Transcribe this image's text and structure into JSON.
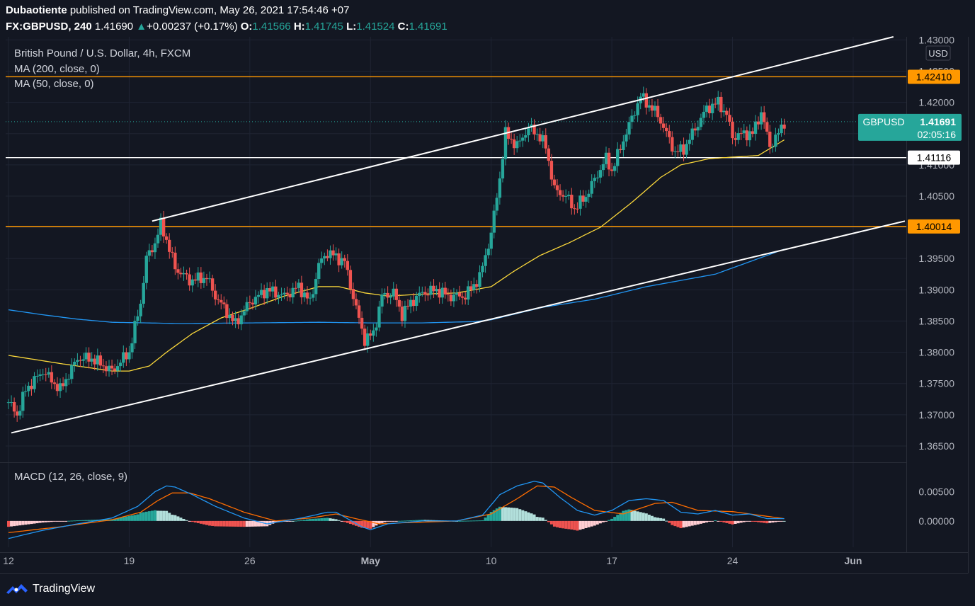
{
  "header": {
    "author": "Dubaotiente",
    "published_text": "published on TradingView.com, May 26, 2021 17:54:46 +07",
    "symbol": "FX:GBPUSD, 240",
    "last": "1.41690",
    "change_arrow": "▲",
    "change": "+0.00237 (+0.17%)",
    "open_label": "O:",
    "open": "1.41566",
    "high_label": "H:",
    "high": "1.41745",
    "low_label": "L:",
    "low": "1.41524",
    "close_label": "C:",
    "close": "1.41691"
  },
  "legend": {
    "title": "British Pound / U.S. Dollar, 4h, FXCM",
    "ma200": "MA (200, close, 0)",
    "ma50": "MA (50, close, 0)",
    "macd": "MACD (12, 26, close, 9)"
  },
  "footer": {
    "brand": "TradingView",
    "logo_icon": "tradingview-logo-icon"
  },
  "colors": {
    "background": "#131722",
    "up": "#26a69a",
    "down": "#ef5350",
    "orange": "#ff9800",
    "ma200": "#2196f3",
    "ma50": "#fbd83b",
    "macd_line": "#2196f3",
    "signal_line": "#ff6d00",
    "hist_up": "#26a69a",
    "hist_down": "#ef5350"
  },
  "chart_data": {
    "type": "candlestick",
    "currency": "USD",
    "price_axis": {
      "ylim": [
        1.3625,
        1.4305
      ],
      "ticks": [
        "1.43000",
        "1.42500",
        "1.42000",
        "1.41500",
        "1.41000",
        "1.40500",
        "1.40000",
        "1.39500",
        "1.39000",
        "1.38500",
        "1.38000",
        "1.37500",
        "1.37000",
        "1.36500"
      ]
    },
    "time_axis": {
      "xlim": [
        "2021-04-12",
        "2021-06-03"
      ],
      "ticks": [
        {
          "date": "2021-04-12",
          "label": "12"
        },
        {
          "date": "2021-04-19",
          "label": "19"
        },
        {
          "date": "2021-04-26",
          "label": "26"
        },
        {
          "date": "2021-05-03",
          "label": "May"
        },
        {
          "date": "2021-05-10",
          "label": "10"
        },
        {
          "date": "2021-05-17",
          "label": "17"
        },
        {
          "date": "2021-05-24",
          "label": "24"
        },
        {
          "date": "2021-05-31",
          "label": "Jun"
        }
      ]
    },
    "horizontal_lines": [
      {
        "value": 1.4241,
        "label": "1.42410",
        "color": "#ff9800"
      },
      {
        "value": 1.40014,
        "label": "1.40014",
        "color": "#ff9800"
      },
      {
        "value": 1.41116,
        "label": "1.41116",
        "color": "#ffffff"
      }
    ],
    "price_label": {
      "symbol": "GBPUSD",
      "value": "1.41691",
      "countdown": "02:05:16",
      "price": 1.41691
    },
    "trendlines": [
      {
        "from": [
          "2021-04-20T08:00",
          1.401
        ],
        "to": [
          "2021-06-02T08:00",
          1.4305
        ]
      },
      {
        "from": [
          "2021-04-12T04:00",
          1.3671
        ],
        "to": [
          "2021-06-03",
          1.401
        ]
      }
    ],
    "ohlc_anchors": [
      [
        "2021-04-12T00:00",
        1.372
      ],
      [
        "2021-04-12T12:00",
        1.37
      ],
      [
        "2021-04-13T00:00",
        1.374
      ],
      [
        "2021-04-14T00:00",
        1.377
      ],
      [
        "2021-04-15T00:00",
        1.374
      ],
      [
        "2021-04-16T00:00",
        1.379
      ],
      [
        "2021-04-16T20:00",
        1.379
      ],
      [
        "2021-04-18T00:00",
        1.377
      ],
      [
        "2021-04-19T00:00",
        1.38
      ],
      [
        "2021-04-19T16:00",
        1.388
      ],
      [
        "2021-04-20T00:00",
        1.395
      ],
      [
        "2021-04-20T12:00",
        1.3975
      ],
      [
        "2021-04-20T20:00",
        1.4005
      ],
      [
        "2021-04-21T04:00",
        1.398
      ],
      [
        "2021-04-21T16:00",
        1.3935
      ],
      [
        "2021-04-22T12:00",
        1.3915
      ],
      [
        "2021-04-23T12:00",
        1.392
      ],
      [
        "2021-04-24T00:00",
        1.389
      ],
      [
        "2021-04-25T04:00",
        1.3845
      ],
      [
        "2021-04-25T12:00",
        1.386
      ],
      [
        "2021-04-26T00:00",
        1.388
      ],
      [
        "2021-04-27T00:00",
        1.39
      ],
      [
        "2021-04-28T00:00",
        1.389
      ],
      [
        "2021-04-28T20:00",
        1.3905
      ],
      [
        "2021-04-29T12:00",
        1.388
      ],
      [
        "2021-04-30T00:00",
        1.394
      ],
      [
        "2021-04-30T12:00",
        1.396
      ],
      [
        "2021-05-01T12:00",
        1.3945
      ],
      [
        "2021-05-02T04:00",
        1.387
      ],
      [
        "2021-05-02T16:00",
        1.382
      ],
      [
        "2021-05-03T04:00",
        1.383
      ],
      [
        "2021-05-03T16:00",
        1.389
      ],
      [
        "2021-05-04T08:00",
        1.3895
      ],
      [
        "2021-05-04T20:00",
        1.386
      ],
      [
        "2021-05-05T08:00",
        1.388
      ],
      [
        "2021-05-06T00:00",
        1.3895
      ],
      [
        "2021-05-06T20:00",
        1.39
      ],
      [
        "2021-05-07T12:00",
        1.389
      ],
      [
        "2021-05-08T12:00",
        1.389
      ],
      [
        "2021-05-09T08:00",
        1.392
      ],
      [
        "2021-05-10T00:00",
        1.399
      ],
      [
        "2021-05-10T12:00",
        1.408
      ],
      [
        "2021-05-10T20:00",
        1.415
      ],
      [
        "2021-05-11T12:00",
        1.413
      ],
      [
        "2021-05-12T04:00",
        1.416
      ],
      [
        "2021-05-12T16:00",
        1.415
      ],
      [
        "2021-05-13T04:00",
        1.413
      ],
      [
        "2021-05-13T16:00",
        1.406
      ],
      [
        "2021-05-14T08:00",
        1.405
      ],
      [
        "2021-05-14T20:00",
        1.403
      ],
      [
        "2021-05-15T12:00",
        1.405
      ],
      [
        "2021-05-16T04:00",
        1.4085
      ],
      [
        "2021-05-16T16:00",
        1.411
      ],
      [
        "2021-05-17T00:00",
        1.409
      ],
      [
        "2021-05-17T16:00",
        1.414
      ],
      [
        "2021-05-18T04:00",
        1.4175
      ],
      [
        "2021-05-18T16:00",
        1.421
      ],
      [
        "2021-05-19T04:00",
        1.4195
      ],
      [
        "2021-05-19T16:00",
        1.418
      ],
      [
        "2021-05-20T04:00",
        1.415
      ],
      [
        "2021-05-20T16:00",
        1.412
      ],
      [
        "2021-05-21T04:00",
        1.4125
      ],
      [
        "2021-05-21T16:00",
        1.415
      ],
      [
        "2021-05-22T12:00",
        1.419
      ],
      [
        "2021-05-23T04:00",
        1.42
      ],
      [
        "2021-05-23T16:00",
        1.418
      ],
      [
        "2021-05-24T00:00",
        1.4145
      ],
      [
        "2021-05-24T16:00",
        1.415
      ],
      [
        "2021-05-25T04:00",
        1.415
      ],
      [
        "2021-05-25T16:00",
        1.4185
      ],
      [
        "2021-05-26T04:00",
        1.413
      ],
      [
        "2021-05-26T16:00",
        1.415
      ],
      [
        "2021-05-27T00:00",
        1.4169
      ]
    ],
    "ma200_anchors": [
      [
        "2021-04-12T00:00",
        1.3868
      ],
      [
        "2021-04-14T00:00",
        1.386
      ],
      [
        "2021-04-16T00:00",
        1.3853
      ],
      [
        "2021-04-18T00:00",
        1.3848
      ],
      [
        "2021-04-22T00:00",
        1.3846
      ],
      [
        "2021-04-26T00:00",
        1.3847
      ],
      [
        "2021-04-30T00:00",
        1.3848
      ],
      [
        "2021-05-03T00:00",
        1.3847
      ],
      [
        "2021-05-06T00:00",
        1.3847
      ],
      [
        "2021-05-09T00:00",
        1.3849
      ],
      [
        "2021-05-10T00:00",
        1.3852
      ],
      [
        "2021-05-11T12:00",
        1.3862
      ],
      [
        "2021-05-13T00:00",
        1.3872
      ],
      [
        "2021-05-16T00:00",
        1.3885
      ],
      [
        "2021-05-19T00:00",
        1.3905
      ],
      [
        "2021-05-23T00:00",
        1.3925
      ],
      [
        "2021-05-27T00:00",
        1.3965
      ]
    ],
    "ma50_anchors": [
      [
        "2021-04-12T00:00",
        1.3795
      ],
      [
        "2021-04-15T00:00",
        1.3782
      ],
      [
        "2021-04-18T00:00",
        1.377
      ],
      [
        "2021-04-19T00:00",
        1.377
      ],
      [
        "2021-04-20T04:00",
        1.3778
      ],
      [
        "2021-04-21T04:00",
        1.38
      ],
      [
        "2021-04-22T16:00",
        1.383
      ],
      [
        "2021-04-24T08:00",
        1.3855
      ],
      [
        "2021-04-26T00:00",
        1.387
      ],
      [
        "2021-04-28T00:00",
        1.389
      ],
      [
        "2021-04-30T00:00",
        1.3905
      ],
      [
        "2021-05-01T04:00",
        1.3905
      ],
      [
        "2021-05-02T16:00",
        1.3895
      ],
      [
        "2021-05-04T00:00",
        1.389
      ],
      [
        "2021-05-06T00:00",
        1.3893
      ],
      [
        "2021-05-08T00:00",
        1.3895
      ],
      [
        "2021-05-10T00:00",
        1.3905
      ],
      [
        "2021-05-11T08:00",
        1.393
      ],
      [
        "2021-05-12T20:00",
        1.3955
      ],
      [
        "2021-05-14T12:00",
        1.3975
      ],
      [
        "2021-05-16T08:00",
        1.4
      ],
      [
        "2021-05-18T04:00",
        1.404
      ],
      [
        "2021-05-19T20:00",
        1.408
      ],
      [
        "2021-05-21T00:00",
        1.41
      ],
      [
        "2021-05-22T16:00",
        1.411
      ],
      [
        "2021-05-24T08:00",
        1.4113
      ],
      [
        "2021-05-25T12:00",
        1.4115
      ],
      [
        "2021-05-27T00:00",
        1.414
      ]
    ],
    "macd": {
      "ylim": [
        -0.0045,
        0.0098
      ],
      "ticks": [
        "0.00500",
        "0.00000"
      ],
      "macd_anchors": [
        [
          "2021-04-12T00:00",
          -0.003
        ],
        [
          "2021-04-14T00:00",
          -0.0016
        ],
        [
          "2021-04-16T00:00",
          -0.0005
        ],
        [
          "2021-04-18T00:00",
          0.0005
        ],
        [
          "2021-04-19T12:00",
          0.0025
        ],
        [
          "2021-04-20T12:00",
          0.005
        ],
        [
          "2021-04-21T04:00",
          0.006
        ],
        [
          "2021-04-21T16:00",
          0.0058
        ],
        [
          "2021-04-22T16:00",
          0.0045
        ],
        [
          "2021-04-24T00:00",
          0.0025
        ],
        [
          "2021-04-25T16:00",
          0.0005
        ],
        [
          "2021-04-27T00:00",
          -0.0005
        ],
        [
          "2021-04-29T00:00",
          0.0005
        ],
        [
          "2021-04-30T12:00",
          0.0015
        ],
        [
          "2021-05-01T00:00",
          0.0015
        ],
        [
          "2021-05-02T12:00",
          -0.001
        ],
        [
          "2021-05-03T00:00",
          -0.0015
        ],
        [
          "2021-05-04T00:00",
          -0.0005
        ],
        [
          "2021-05-06T00:00",
          0.0
        ],
        [
          "2021-05-08T00:00",
          0.0
        ],
        [
          "2021-05-09T12:00",
          0.001
        ],
        [
          "2021-05-10T12:00",
          0.0045
        ],
        [
          "2021-05-11T12:00",
          0.006
        ],
        [
          "2021-05-12T12:00",
          0.0068
        ],
        [
          "2021-05-13T00:00",
          0.0065
        ],
        [
          "2021-05-14T00:00",
          0.004
        ],
        [
          "2021-05-15T00:00",
          0.0018
        ],
        [
          "2021-05-16T00:00",
          0.001
        ],
        [
          "2021-05-17T00:00",
          0.0018
        ],
        [
          "2021-05-18T00:00",
          0.0035
        ],
        [
          "2021-05-19T00:00",
          0.0038
        ],
        [
          "2021-05-20T00:00",
          0.0035
        ],
        [
          "2021-05-21T00:00",
          0.0015
        ],
        [
          "2021-05-22T00:00",
          0.0012
        ],
        [
          "2021-05-23T00:00",
          0.0018
        ],
        [
          "2021-05-24T00:00",
          0.001
        ],
        [
          "2021-05-25T00:00",
          0.0012
        ],
        [
          "2021-05-26T00:00",
          0.0004
        ],
        [
          "2021-05-27T00:00",
          0.0004
        ]
      ],
      "signal_anchors": [
        [
          "2021-04-12T00:00",
          -0.002
        ],
        [
          "2021-04-15T00:00",
          -0.001
        ],
        [
          "2021-04-18T00:00",
          0.0002
        ],
        [
          "2021-04-19T16:00",
          0.0015
        ],
        [
          "2021-04-20T16:00",
          0.0035
        ],
        [
          "2021-04-21T12:00",
          0.0048
        ],
        [
          "2021-04-22T12:00",
          0.0048
        ],
        [
          "2021-04-23T16:00",
          0.0038
        ],
        [
          "2021-04-25T16:00",
          0.0015
        ],
        [
          "2021-04-27T12:00",
          0.0
        ],
        [
          "2021-04-29T12:00",
          0.0005
        ],
        [
          "2021-05-01T00:00",
          0.0012
        ],
        [
          "2021-05-02T00:00",
          0.0005
        ],
        [
          "2021-05-03T12:00",
          -0.0005
        ],
        [
          "2021-05-05T00:00",
          -0.0003
        ],
        [
          "2021-05-08T00:00",
          0.0
        ],
        [
          "2021-05-10T00:00",
          0.0012
        ],
        [
          "2021-05-11T12:00",
          0.0038
        ],
        [
          "2021-05-12T16:00",
          0.006
        ],
        [
          "2021-05-13T16:00",
          0.0058
        ],
        [
          "2021-05-14T16:00",
          0.004
        ],
        [
          "2021-05-16T00:00",
          0.0018
        ],
        [
          "2021-05-17T16:00",
          0.0012
        ],
        [
          "2021-05-19T12:00",
          0.003
        ],
        [
          "2021-05-20T12:00",
          0.0032
        ],
        [
          "2021-05-22T00:00",
          0.0018
        ],
        [
          "2021-05-24T00:00",
          0.0016
        ],
        [
          "2021-05-27T00:00",
          0.0004
        ]
      ]
    }
  }
}
